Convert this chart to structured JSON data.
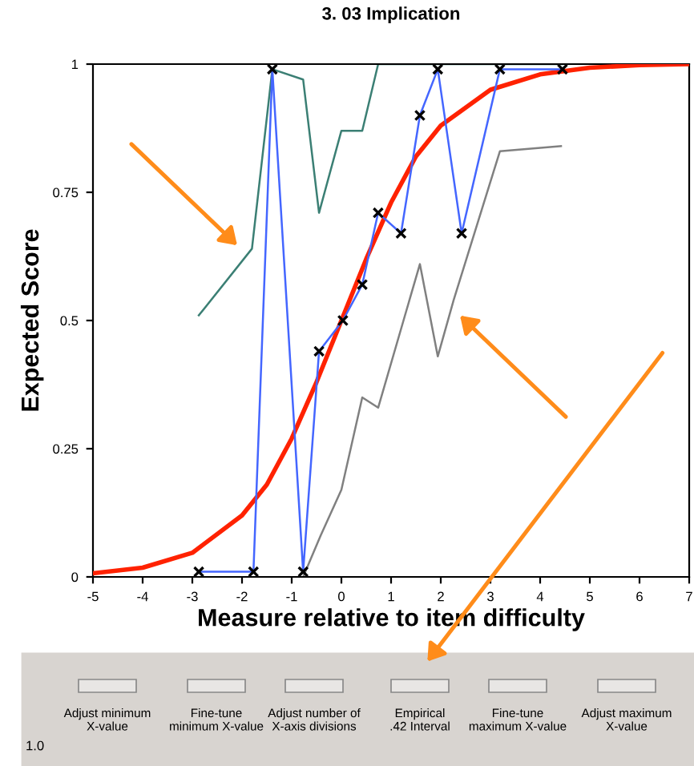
{
  "chart_data": {
    "type": "line",
    "title": "3. 03 Implication",
    "xlabel": "Measure relative to item difficulty",
    "ylabel": "Expected Score",
    "xlim": [
      -5,
      7
    ],
    "xticks": [
      -5,
      -4,
      -3,
      -2,
      -1,
      0,
      1,
      2,
      3,
      4,
      5,
      6,
      7
    ],
    "ylim": [
      0,
      1
    ],
    "yticks": [
      0,
      0.25,
      0.5,
      0.75,
      1
    ],
    "grid": false,
    "legend": false,
    "series": [
      {
        "color": "#3b7f74",
        "marker": "none",
        "x": [
          -2.87,
          -1.8,
          -1.39,
          -0.77,
          -0.45,
          0.0,
          0.42,
          0.74,
          4.45
        ],
        "values": [
          0.51,
          0.64,
          0.99,
          0.97,
          0.71,
          0.87,
          0.87,
          1.0,
          1.0
        ]
      },
      {
        "color": "#808080",
        "marker": "none",
        "x": [
          -0.77,
          -0.42,
          0.0,
          0.42,
          0.74,
          1.58,
          1.94,
          2.26,
          3.19,
          4.42
        ],
        "values": [
          0.0,
          0.08,
          0.17,
          0.35,
          0.33,
          0.61,
          0.43,
          0.54,
          0.83,
          0.84
        ]
      },
      {
        "color": "#4466ff",
        "marker": "cross",
        "x": [
          -2.87,
          -1.77,
          -1.39,
          -0.77,
          -0.45,
          0.03,
          0.42,
          0.74,
          1.2,
          1.58,
          1.94,
          2.42,
          3.19,
          4.45
        ],
        "values": [
          0.01,
          0.01,
          0.99,
          0.01,
          0.44,
          0.5,
          0.57,
          0.71,
          0.67,
          0.9,
          0.99,
          0.67,
          0.99,
          0.99
        ]
      },
      {
        "color": "#ff2200",
        "marker": "none",
        "x": [
          -5,
          -4,
          -3,
          -2,
          -1.5,
          -1,
          -0.5,
          0,
          0.5,
          1,
          1.5,
          2,
          3,
          4,
          5,
          6,
          7
        ],
        "values": [
          0.007,
          0.018,
          0.047,
          0.12,
          0.18,
          0.27,
          0.38,
          0.5,
          0.62,
          0.73,
          0.82,
          0.88,
          0.95,
          0.98,
          0.993,
          0.998,
          1.0
        ]
      }
    ],
    "annotations": [
      "Adjust minimum\nX-value",
      "Fine-tune\nminimum X-value",
      "Adjust number of\nX-axis divisions",
      "Empirical\n.42 Interval",
      "Fine-tune\nmaximum X-value",
      "Adjust maximum\nX-value",
      "1.0"
    ]
  }
}
